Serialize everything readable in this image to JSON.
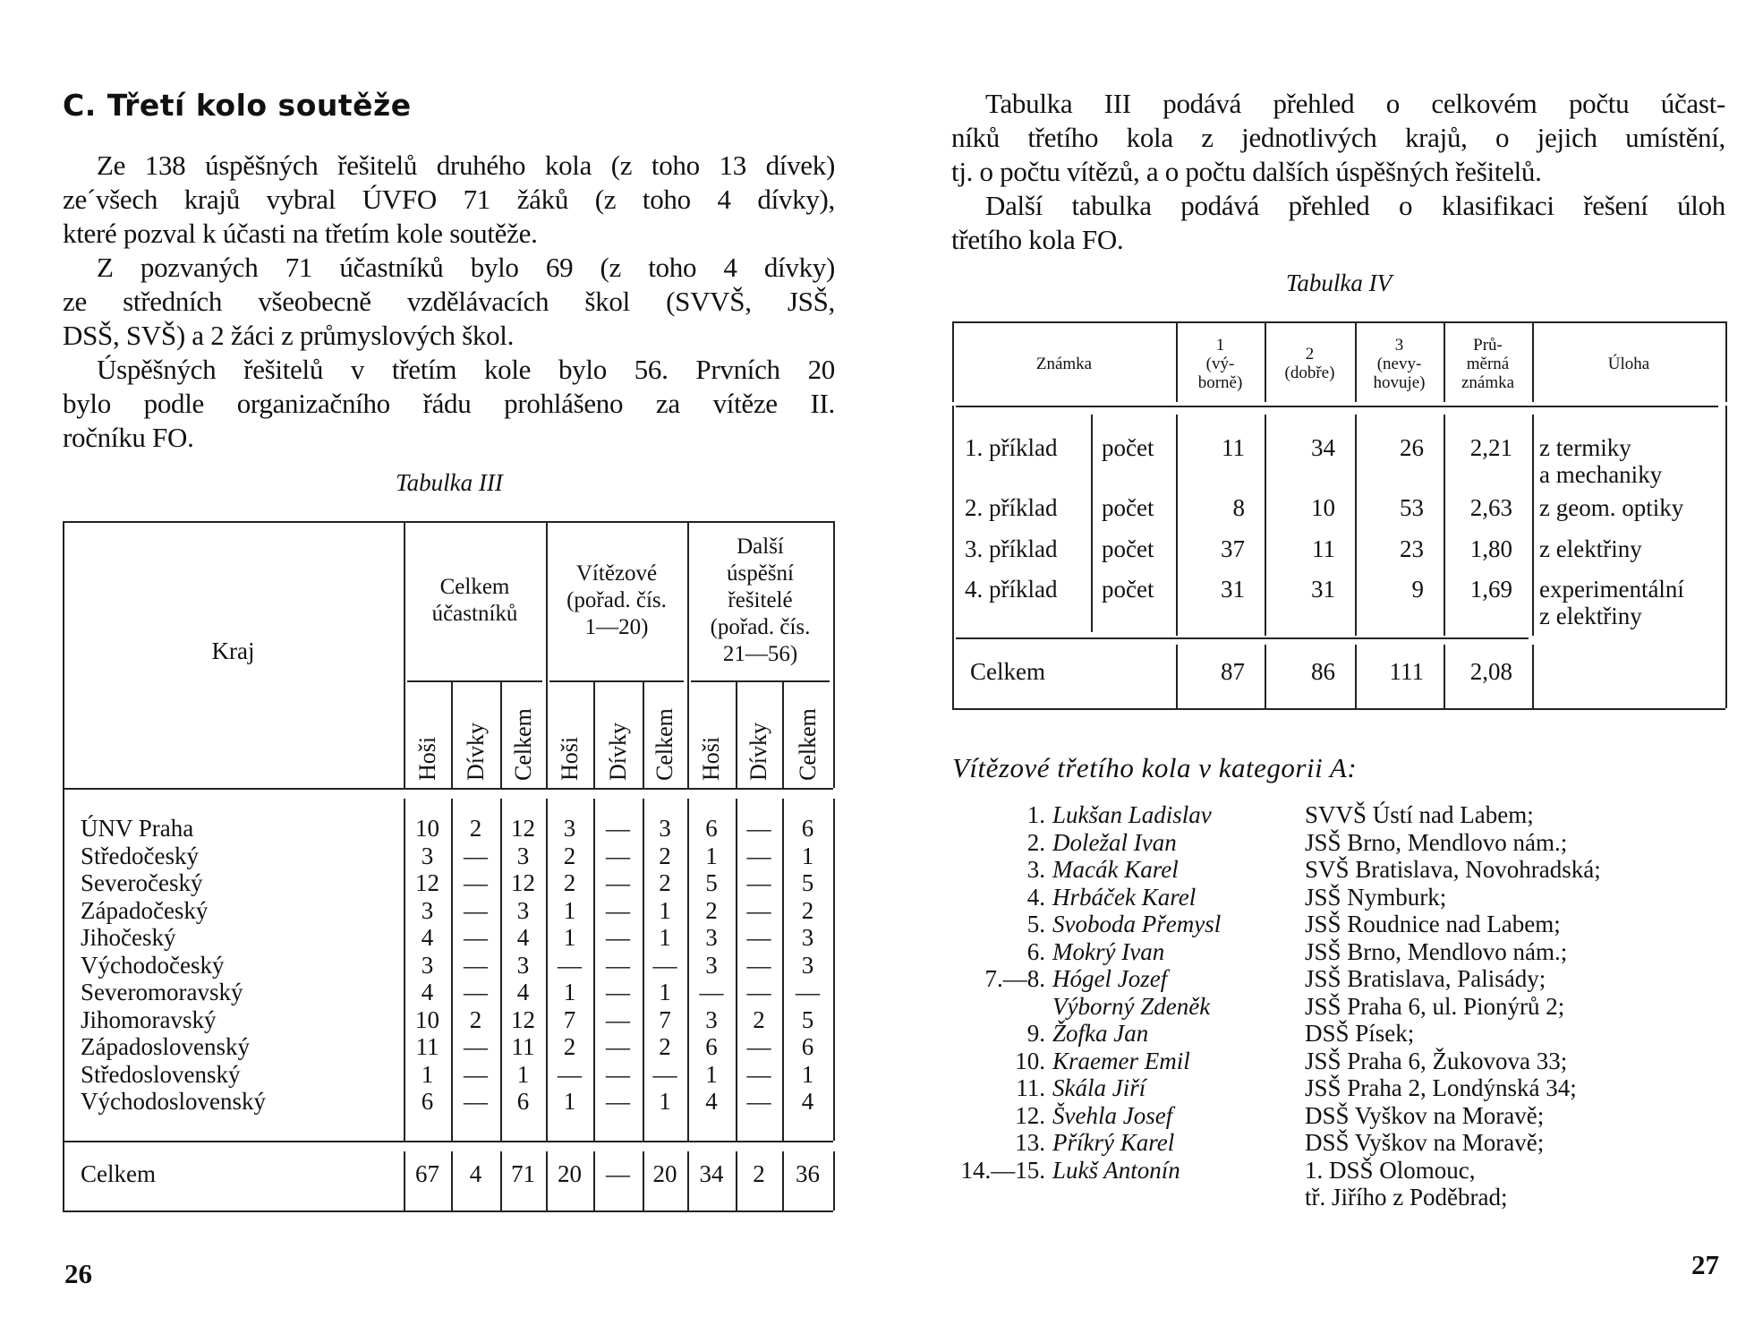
{
  "left_page": {
    "heading": "C. Třetí kolo soutěže",
    "paragraph_lines": [
      "Ze 138 úspěšných řešitelů druhého kola (z toho 13 dívek)",
      "ze´všech krajů vybral ÚVFO 71 žáků (z toho 4 dívky),",
      "které pozval k účasti na třetím kole soutěže.",
      "Z pozvaných 71 účastníků bylo 69 (z toho 4 dívky)",
      "ze středních všeobecně vzdělávacích škol (SVVŠ, JSŠ,",
      "DSŠ, SVŠ) a 2 žáci z průmyslových škol.",
      "Úspěšných řešitelů v třetím kole bylo 56. Prvních 20",
      "bylo podle organizačního řádu prohlášeno za vítěze II.",
      "ročníku FO."
    ],
    "table_caption": "Tabulka III",
    "page_number": "26"
  },
  "table3": {
    "kraj_header": "Kraj",
    "group_headers": [
      [
        "Celkem",
        "účastníků"
      ],
      [
        "Vítězové",
        "(pořad. čís.",
        "1—20)"
      ],
      [
        "Další",
        "úspěšní",
        "řešitelé",
        "(pořad. čís.",
        "21—56)"
      ]
    ],
    "sub_headers": [
      "Hoši",
      "Dívky",
      "Celkem",
      "Hoši",
      "Dívky",
      "Celkem",
      "Hoši",
      "Dívky",
      "Celkem"
    ],
    "rows": [
      {
        "kraj": "ÚNV Praha",
        "values": [
          "10",
          "2",
          "12",
          "3",
          "—",
          "3",
          "6",
          "—",
          "6"
        ]
      },
      {
        "kraj": "Středočeský",
        "values": [
          "3",
          "—",
          "3",
          "2",
          "—",
          "2",
          "1",
          "—",
          "1"
        ]
      },
      {
        "kraj": "Severočeský",
        "values": [
          "12",
          "—",
          "12",
          "2",
          "—",
          "2",
          "5",
          "—",
          "5"
        ]
      },
      {
        "kraj": "Západočeský",
        "values": [
          "3",
          "—",
          "3",
          "1",
          "—",
          "1",
          "2",
          "—",
          "2"
        ]
      },
      {
        "kraj": "Jihočeský",
        "values": [
          "4",
          "—",
          "4",
          "1",
          "—",
          "1",
          "3",
          "—",
          "3"
        ]
      },
      {
        "kraj": "Východočeský",
        "values": [
          "3",
          "—",
          "3",
          "—",
          "—",
          "—",
          "3",
          "—",
          "3"
        ]
      },
      {
        "kraj": "Severomoravský",
        "values": [
          "4",
          "—",
          "4",
          "1",
          "—",
          "1",
          "—",
          "—",
          "—"
        ]
      },
      {
        "kraj": "Jihomoravský",
        "values": [
          "10",
          "2",
          "12",
          "7",
          "—",
          "7",
          "3",
          "2",
          "5"
        ]
      },
      {
        "kraj": "Západoslovenský",
        "values": [
          "11",
          "—",
          "11",
          "2",
          "—",
          "2",
          "6",
          "—",
          "6"
        ]
      },
      {
        "kraj": "Středoslovenský",
        "values": [
          "1",
          "—",
          "1",
          "—",
          "—",
          "—",
          "1",
          "—",
          "1"
        ]
      },
      {
        "kraj": "Východoslovenský",
        "values": [
          "6",
          "—",
          "6",
          "1",
          "—",
          "1",
          "4",
          "—",
          "4"
        ]
      }
    ],
    "total": {
      "kraj": "Celkem",
      "values": [
        "67",
        "4",
        "71",
        "20",
        "—",
        "20",
        "34",
        "2",
        "36"
      ]
    }
  },
  "right_page": {
    "paragraph_lines": [
      "Tabulka III podává přehled o celkovém počtu účast-",
      "níků třetího kola z jednotlivých krajů, o jejich umístění,",
      "tj. o počtu vítězů, a o počtu dalších úspěšných řešitelů.",
      "Další tabulka podává přehled o klasifikaci řešení úloh",
      "třetího kola FO."
    ],
    "table_caption": "Tabulka IV",
    "page_number": "27"
  },
  "table4": {
    "headers": [
      [
        "Známka"
      ],
      [
        "1",
        "(vý-",
        "borně)"
      ],
      [
        "2",
        "(dobře)"
      ],
      [
        "3",
        "(nevy-",
        "hovuje)"
      ],
      [
        "Prů-",
        "měrná",
        "známka"
      ],
      [
        "Úloha"
      ]
    ],
    "rows": [
      {
        "priklad": "1. příklad",
        "label": "počet",
        "values": [
          "11",
          "34",
          "26",
          "2,21"
        ],
        "uloha": [
          "z termiky",
          "a mechaniky"
        ]
      },
      {
        "priklad": "2. příklad",
        "label": "počet",
        "values": [
          "8",
          "10",
          "53",
          "2,63"
        ],
        "uloha": [
          "z geom. optiky"
        ]
      },
      {
        "priklad": "3. příklad",
        "label": "počet",
        "values": [
          "37",
          "11",
          "23",
          "1,80"
        ],
        "uloha": [
          "z elektřiny"
        ]
      },
      {
        "priklad": "4. příklad",
        "label": "počet",
        "values": [
          "31",
          "31",
          "9",
          "1,69"
        ],
        "uloha": [
          "experimentální",
          "z elektřiny"
        ]
      }
    ],
    "total": {
      "label": "Celkem",
      "values": [
        "87",
        "86",
        "111",
        "2,08"
      ]
    }
  },
  "winners": {
    "title": "Vítězové třetího kola v kategorii A:",
    "rows": [
      {
        "num": "1.",
        "name": "Lukšan Ladislav",
        "school": "SVVŠ Ústí nad Labem;"
      },
      {
        "num": "2.",
        "name": "Doležal Ivan",
        "school": "JSŠ Brno, Mendlovo nám.;"
      },
      {
        "num": "3.",
        "name": "Macák Karel",
        "school": "SVŠ Bratislava, Novohradská;"
      },
      {
        "num": "4.",
        "name": "Hrbáček Karel",
        "school": "JSŠ Nymburk;"
      },
      {
        "num": "5.",
        "name": "Svoboda Přemysl",
        "school": "JSŠ Roudnice nad Labem;"
      },
      {
        "num": "6.",
        "name": "Mokrý Ivan",
        "school": "JSŠ Brno, Mendlovo nám.;"
      },
      {
        "num": "7.—8.",
        "name": "Hógel Jozef",
        "school": "JSŠ Bratislava, Palisády;"
      },
      {
        "num": "",
        "name": "Výborný Zdeněk",
        "school": "JSŠ Praha 6, ul. Pionýrů 2;"
      },
      {
        "num": "9.",
        "name": "Žofka Jan",
        "school": "DSŠ Písek;"
      },
      {
        "num": "10.",
        "name": "Kraemer Emil",
        "school": "JSŠ Praha 6, Žukovova 33;"
      },
      {
        "num": "11.",
        "name": "Skála Jiří",
        "school": "JSŠ Praha 2, Londýnská 34;"
      },
      {
        "num": "12.",
        "name": "Švehla Josef",
        "school": "DSŠ Vyškov na Moravě;"
      },
      {
        "num": "13.",
        "name": "Příkrý Karel",
        "school": "DSŠ Vyškov na Moravě;"
      },
      {
        "num": "14.—15.",
        "name": "Lukš Antonín",
        "school": "1. DSŠ Olomouc,"
      },
      {
        "num": "",
        "name": "",
        "school": "tř. Jiřího z Poděbrad;"
      }
    ]
  }
}
